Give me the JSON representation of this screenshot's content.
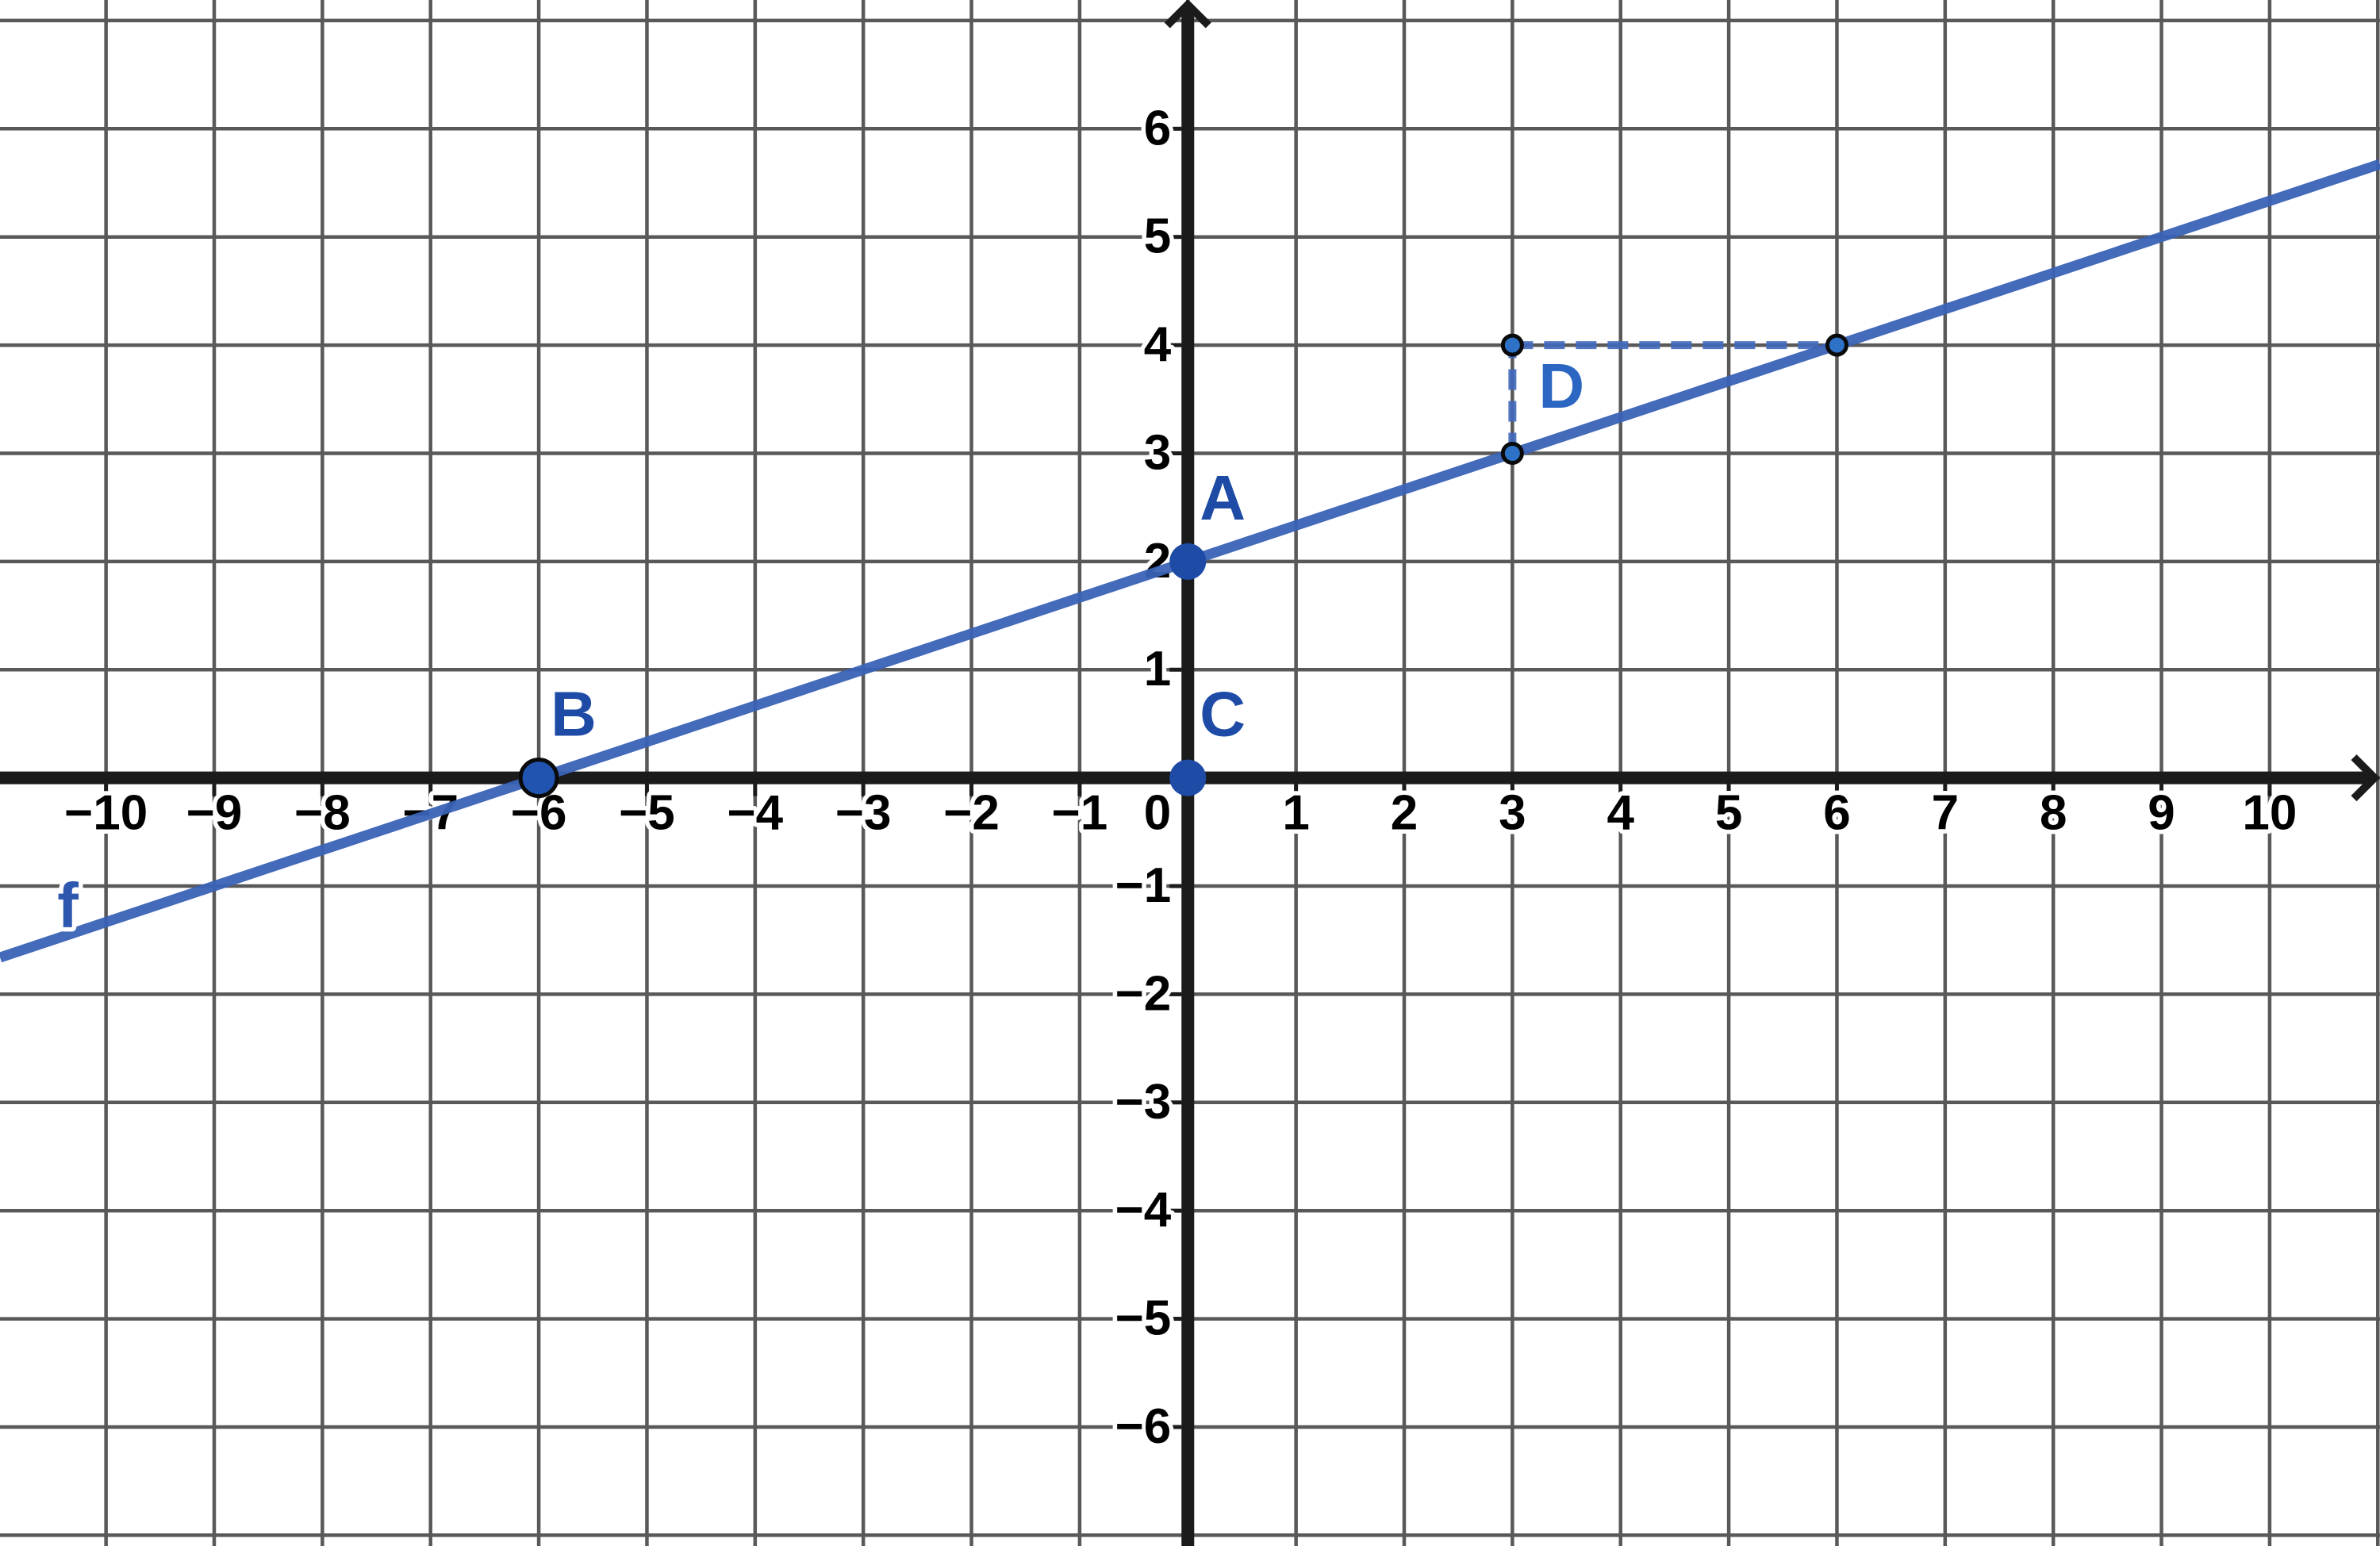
{
  "figure": {
    "description": "Coordinate plane with linear function f, points A, B, C and a dashed slope triangle labeled D"
  },
  "chart_data": {
    "type": "line",
    "grid": true,
    "legend_position": "none",
    "series": [
      {
        "name": "f",
        "kind": "linear-function",
        "slope": 0.3333333333,
        "intercept": 2,
        "x_intercept": -6,
        "y_intercept": 2,
        "sample_points": [
          [
            -6,
            0
          ],
          [
            0,
            2
          ],
          [
            3,
            3
          ],
          [
            6,
            4
          ]
        ]
      }
    ],
    "x_axis": {
      "min": -10.98,
      "max": 11.02,
      "tick_step": 1,
      "tick_values": [
        -10,
        -9,
        -8,
        -7,
        -6,
        -5,
        -4,
        -3,
        -2,
        -1,
        1,
        2,
        3,
        4,
        5,
        6,
        7,
        8,
        9,
        10
      ],
      "tick_labels": [
        "−10",
        "−9",
        "−8",
        "−7",
        "−6",
        "−5",
        "−4",
        "−3",
        "−2",
        "−1",
        "1",
        "2",
        "3",
        "4",
        "5",
        "6",
        "7",
        "8",
        "9",
        "10"
      ]
    },
    "y_axis": {
      "min": -7.1,
      "max": 7.19,
      "tick_step": 1,
      "tick_values": [
        -6,
        -5,
        -4,
        -3,
        -2,
        -1,
        1,
        2,
        3,
        4,
        5,
        6
      ],
      "tick_labels": [
        "−6",
        "−5",
        "−4",
        "−3",
        "−2",
        "−1",
        "1",
        "2",
        "3",
        "4",
        "5",
        "6"
      ]
    },
    "origin_label": "0",
    "points": [
      {
        "label": "A",
        "x": 0,
        "y": 2,
        "size": "large",
        "outlined": false
      },
      {
        "label": "B",
        "x": -6,
        "y": 0,
        "size": "large",
        "outlined": true
      },
      {
        "label": "C",
        "x": 0,
        "y": 0,
        "size": "large",
        "outlined": false
      }
    ],
    "slope_triangle": {
      "label": "D",
      "rise": 1,
      "run": 3,
      "vertex_points": [
        {
          "x": 3,
          "y": 3
        },
        {
          "x": 3,
          "y": 4
        },
        {
          "x": 6,
          "y": 4
        }
      ],
      "dashed_segments": [
        {
          "from": [
            3,
            3
          ],
          "to": [
            3,
            4
          ]
        },
        {
          "from": [
            3,
            4
          ],
          "to": [
            6,
            4
          ]
        }
      ]
    },
    "line_label": {
      "text": "f",
      "x": -10.45,
      "y": -1.38
    }
  },
  "colors": {
    "background": "#ffffff",
    "grid": "#595959",
    "axis": "#1b1b1b",
    "tick_label": "#000000",
    "line": "#3a63b7",
    "dash": "#4169bd",
    "point_fill": "#1d4ba6",
    "point_b_fill": "#2153b0",
    "point_outline": "#0a0a0a",
    "triangle_point_fill": "#2d72c7",
    "label_abc": "#1d4ba6",
    "label_d": "#2b66c2",
    "label_f": "#2e57ae"
  }
}
